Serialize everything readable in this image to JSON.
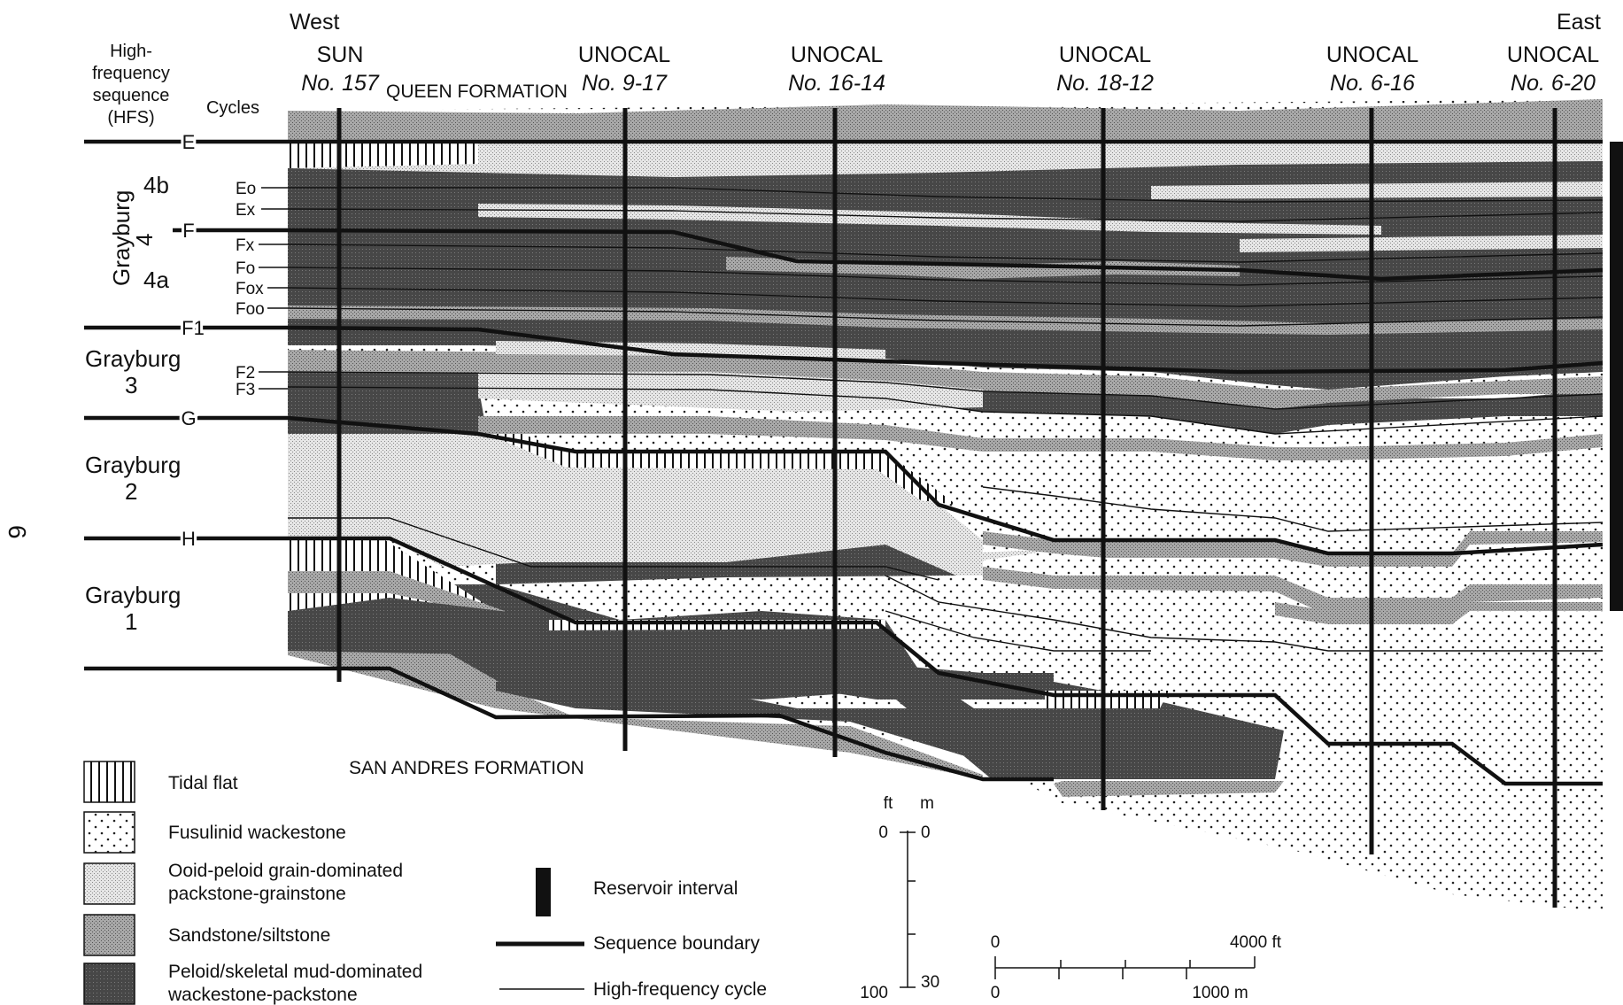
{
  "directions": {
    "west": "West",
    "east": "East"
  },
  "header": {
    "hfs_lines": [
      "High-",
      "frequency",
      "sequence",
      "(HFS)"
    ],
    "cycles": "Cycles"
  },
  "formations": {
    "upper": "QUEEN FORMATION",
    "lower": "SAN ANDRES FORMATION"
  },
  "wells": [
    {
      "name": "SUN",
      "number": "No. 157"
    },
    {
      "name": "UNOCAL",
      "number": "No. 9-17"
    },
    {
      "name": "UNOCAL",
      "number": "No. 16-14"
    },
    {
      "name": "UNOCAL",
      "number": "No. 18-12"
    },
    {
      "name": "UNOCAL",
      "number": "No. 6-16"
    },
    {
      "name": "UNOCAL",
      "number": "No. 6-20"
    }
  ],
  "boundaries": [
    "E",
    "F",
    "F1",
    "G",
    "H"
  ],
  "cycles": [
    "Eo",
    "Ex",
    "Fx",
    "Fo",
    "Fox",
    "Foo",
    "F2",
    "F3"
  ],
  "hfs_units": {
    "grayburg4_name": "Grayburg",
    "grayburg4_num": "4",
    "sub_4b": "4b",
    "sub_4a": "4a",
    "grayburg3": [
      "Grayburg",
      "3"
    ],
    "grayburg2": [
      "Grayburg",
      "2"
    ],
    "grayburg1": [
      "Grayburg",
      "1"
    ]
  },
  "page_number": "6",
  "legend": {
    "facies": [
      {
        "key": "tidal",
        "lines": [
          "Tidal flat"
        ]
      },
      {
        "key": "fusulinid",
        "lines": [
          "Fusulinid wackestone"
        ]
      },
      {
        "key": "ooid",
        "lines": [
          "Ooid-peloid grain-dominated",
          "packstone-grainstone"
        ]
      },
      {
        "key": "sand",
        "lines": [
          "Sandstone/siltstone"
        ]
      },
      {
        "key": "peloid",
        "lines": [
          "Peloid/skeletal mud-dominated",
          "wackestone-packstone"
        ]
      }
    ],
    "symbols": {
      "reservoir": "Reservoir interval",
      "sequence": "Sequence boundary",
      "hfc": "High-frequency cycle"
    }
  },
  "vertical_scale": {
    "ft": "ft",
    "m": "m",
    "ft_zero": "0",
    "m_zero": "0",
    "ft_max": "100",
    "m_max": "30"
  },
  "horizontal_scale": {
    "zero_top": "0",
    "ft_label": "4000 ft",
    "zero_bottom": "0",
    "m_label": "1000 m"
  },
  "colors": {
    "peloid": "#4d4d4d",
    "sand": "#9a9a9a",
    "ooid": "#d6d6d6",
    "fusulinid": "#ffffff",
    "line": "#111111"
  }
}
